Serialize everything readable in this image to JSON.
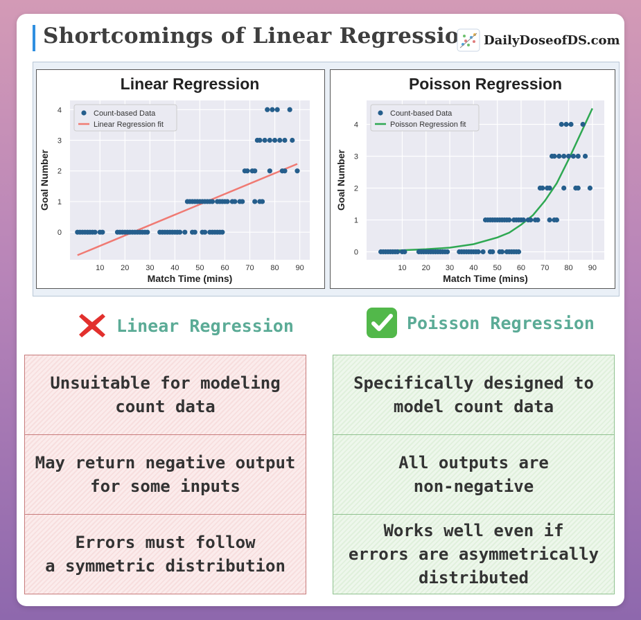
{
  "header": {
    "title": "Shortcomings of Linear Regression",
    "brand": "DailyDoseofDS.com"
  },
  "colors": {
    "accent_bar": "#2f8fe0",
    "data_points": "#255e8c",
    "linear_fit": "#f07a73",
    "poisson_fit": "#2ea852",
    "verdict_text": "#5bab96",
    "cross": "#e2302d",
    "check": "#52b84a"
  },
  "chart_data": [
    {
      "type": "scatter",
      "title": "Linear Regression",
      "xlabel": "Match Time (mins)",
      "ylabel": "Goal Number",
      "xticks": [
        10,
        20,
        30,
        40,
        50,
        60,
        70,
        80,
        90
      ],
      "yticks": [
        0,
        1,
        2,
        3,
        4
      ],
      "xlim": [
        -2,
        94
      ],
      "ylim": [
        -0.9,
        4.3
      ],
      "grid": true,
      "legend_position": "top-left",
      "legend": [
        "Count-based Data",
        "Linear Regression fit"
      ],
      "series": [
        {
          "name": "Count-based Data",
          "kind": "points",
          "points": [
            [
              1,
              0
            ],
            [
              2,
              0
            ],
            [
              3,
              0
            ],
            [
              4,
              0
            ],
            [
              5,
              0
            ],
            [
              6,
              0
            ],
            [
              7,
              0
            ],
            [
              8,
              0
            ],
            [
              10,
              0
            ],
            [
              11,
              0
            ],
            [
              17,
              0
            ],
            [
              18,
              0
            ],
            [
              19,
              0
            ],
            [
              20,
              0
            ],
            [
              21,
              0
            ],
            [
              22,
              0
            ],
            [
              23,
              0
            ],
            [
              24,
              0
            ],
            [
              25,
              0
            ],
            [
              26,
              0
            ],
            [
              27,
              0
            ],
            [
              28,
              0
            ],
            [
              29,
              0
            ],
            [
              34,
              0
            ],
            [
              35,
              0
            ],
            [
              36,
              0
            ],
            [
              37,
              0
            ],
            [
              38,
              0
            ],
            [
              39,
              0
            ],
            [
              40,
              0
            ],
            [
              41,
              0
            ],
            [
              42,
              0
            ],
            [
              44,
              0
            ],
            [
              47,
              0
            ],
            [
              48,
              0
            ],
            [
              51,
              0
            ],
            [
              52,
              0
            ],
            [
              54,
              0
            ],
            [
              55,
              0
            ],
            [
              56,
              0
            ],
            [
              57,
              0
            ],
            [
              58,
              0
            ],
            [
              59,
              0
            ],
            [
              45,
              1
            ],
            [
              46,
              1
            ],
            [
              47,
              1
            ],
            [
              48,
              1
            ],
            [
              49,
              1
            ],
            [
              50,
              1
            ],
            [
              51,
              1
            ],
            [
              52,
              1
            ],
            [
              53,
              1
            ],
            [
              54,
              1
            ],
            [
              55,
              1
            ],
            [
              57,
              1
            ],
            [
              58,
              1
            ],
            [
              59,
              1
            ],
            [
              60,
              1
            ],
            [
              61,
              1
            ],
            [
              63,
              1
            ],
            [
              64,
              1
            ],
            [
              66,
              1
            ],
            [
              67,
              1
            ],
            [
              72,
              1
            ],
            [
              74,
              1
            ],
            [
              75,
              1
            ],
            [
              68,
              2
            ],
            [
              69,
              2
            ],
            [
              71,
              2
            ],
            [
              72,
              2
            ],
            [
              78,
              2
            ],
            [
              83,
              2
            ],
            [
              84,
              2
            ],
            [
              89,
              2
            ],
            [
              73,
              3
            ],
            [
              74,
              3
            ],
            [
              76,
              3
            ],
            [
              78,
              3
            ],
            [
              80,
              3
            ],
            [
              82,
              3
            ],
            [
              84,
              3
            ],
            [
              87,
              3
            ],
            [
              77,
              4
            ],
            [
              79,
              4
            ],
            [
              81,
              4
            ],
            [
              86,
              4
            ]
          ]
        },
        {
          "name": "Linear Regression fit",
          "kind": "line",
          "points": [
            [
              1,
              -0.75
            ],
            [
              89,
              2.23
            ]
          ]
        }
      ]
    },
    {
      "type": "scatter",
      "title": "Poisson Regression",
      "xlabel": "Match Time (mins)",
      "ylabel": "Goal Number",
      "xticks": [
        10,
        20,
        30,
        40,
        50,
        60,
        70,
        80,
        90
      ],
      "yticks": [
        0,
        1,
        2,
        3,
        4
      ],
      "xlim": [
        -5,
        95
      ],
      "ylim": [
        -0.25,
        4.75
      ],
      "grid": true,
      "legend_position": "top-left",
      "legend": [
        "Count-based Data",
        "Poisson Regression fit"
      ],
      "series": [
        {
          "name": "Count-based Data",
          "kind": "points",
          "points": [
            [
              1,
              0
            ],
            [
              2,
              0
            ],
            [
              3,
              0
            ],
            [
              4,
              0
            ],
            [
              5,
              0
            ],
            [
              6,
              0
            ],
            [
              7,
              0
            ],
            [
              8,
              0
            ],
            [
              10,
              0
            ],
            [
              11,
              0
            ],
            [
              17,
              0
            ],
            [
              18,
              0
            ],
            [
              19,
              0
            ],
            [
              20,
              0
            ],
            [
              21,
              0
            ],
            [
              22,
              0
            ],
            [
              23,
              0
            ],
            [
              24,
              0
            ],
            [
              25,
              0
            ],
            [
              26,
              0
            ],
            [
              27,
              0
            ],
            [
              28,
              0
            ],
            [
              29,
              0
            ],
            [
              34,
              0
            ],
            [
              35,
              0
            ],
            [
              36,
              0
            ],
            [
              37,
              0
            ],
            [
              38,
              0
            ],
            [
              39,
              0
            ],
            [
              40,
              0
            ],
            [
              41,
              0
            ],
            [
              42,
              0
            ],
            [
              44,
              0
            ],
            [
              47,
              0
            ],
            [
              48,
              0
            ],
            [
              51,
              0
            ],
            [
              52,
              0
            ],
            [
              54,
              0
            ],
            [
              55,
              0
            ],
            [
              56,
              0
            ],
            [
              57,
              0
            ],
            [
              58,
              0
            ],
            [
              59,
              0
            ],
            [
              45,
              1
            ],
            [
              46,
              1
            ],
            [
              47,
              1
            ],
            [
              48,
              1
            ],
            [
              49,
              1
            ],
            [
              50,
              1
            ],
            [
              51,
              1
            ],
            [
              52,
              1
            ],
            [
              53,
              1
            ],
            [
              54,
              1
            ],
            [
              55,
              1
            ],
            [
              57,
              1
            ],
            [
              58,
              1
            ],
            [
              59,
              1
            ],
            [
              60,
              1
            ],
            [
              61,
              1
            ],
            [
              63,
              1
            ],
            [
              64,
              1
            ],
            [
              66,
              1
            ],
            [
              67,
              1
            ],
            [
              72,
              1
            ],
            [
              74,
              1
            ],
            [
              75,
              1
            ],
            [
              68,
              2
            ],
            [
              69,
              2
            ],
            [
              71,
              2
            ],
            [
              72,
              2
            ],
            [
              78,
              2
            ],
            [
              83,
              2
            ],
            [
              84,
              2
            ],
            [
              89,
              2
            ],
            [
              73,
              3
            ],
            [
              74,
              3
            ],
            [
              76,
              3
            ],
            [
              78,
              3
            ],
            [
              80,
              3
            ],
            [
              82,
              3
            ],
            [
              84,
              3
            ],
            [
              87,
              3
            ],
            [
              77,
              4
            ],
            [
              79,
              4
            ],
            [
              81,
              4
            ],
            [
              86,
              4
            ]
          ]
        },
        {
          "name": "Poisson Regression fit",
          "kind": "curve",
          "points": [
            [
              1,
              0.03
            ],
            [
              10,
              0.05
            ],
            [
              20,
              0.08
            ],
            [
              30,
              0.13
            ],
            [
              40,
              0.24
            ],
            [
              50,
              0.45
            ],
            [
              55,
              0.6
            ],
            [
              60,
              0.85
            ],
            [
              65,
              1.15
            ],
            [
              70,
              1.6
            ],
            [
              75,
              2.15
            ],
            [
              80,
              2.9
            ],
            [
              85,
              3.7
            ],
            [
              90,
              4.5
            ]
          ]
        }
      ]
    }
  ],
  "verdicts": {
    "left": "Linear Regression",
    "right": "Poisson Regression"
  },
  "comparison": {
    "left": [
      [
        "Unsuitable for modeling",
        "count data"
      ],
      [
        "May return negative output",
        "for some inputs"
      ],
      [
        "Errors must follow",
        "a symmetric distribution"
      ]
    ],
    "right": [
      [
        "Specifically designed to",
        "model count data"
      ],
      [
        "All outputs are",
        "non-negative"
      ],
      [
        "Works well even if",
        "errors are asymmetrically",
        "distributed"
      ]
    ]
  }
}
